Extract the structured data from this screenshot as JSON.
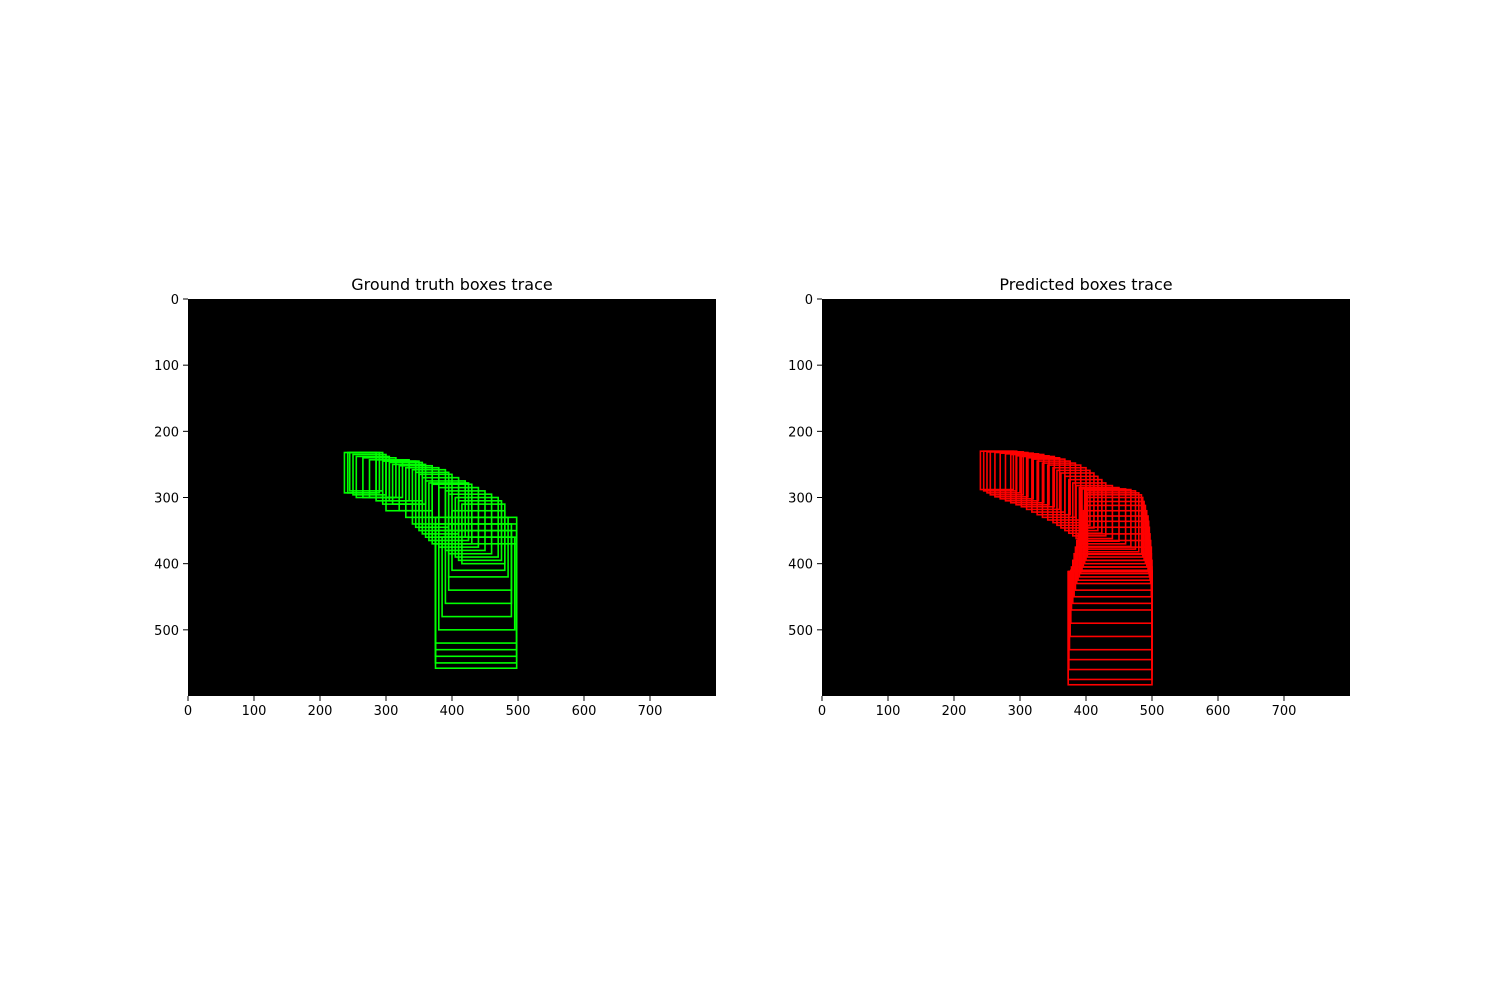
{
  "chart_data": [
    {
      "type": "rectangles",
      "title": "Ground truth boxes trace",
      "background": "#000000",
      "box_color": "#00ff00",
      "xlim": [
        0,
        800
      ],
      "ylim": [
        600,
        0
      ],
      "xticks": [
        0,
        100,
        200,
        300,
        400,
        500,
        600,
        700
      ],
      "yticks": [
        0,
        100,
        200,
        300,
        400,
        500
      ],
      "boxes": [
        [
          237,
          232,
          285,
          293
        ],
        [
          242,
          232,
          290,
          293
        ],
        [
          245,
          232,
          295,
          290
        ],
        [
          250,
          235,
          300,
          296
        ],
        [
          255,
          238,
          305,
          300
        ],
        [
          265,
          240,
          315,
          300
        ],
        [
          275,
          243,
          325,
          300
        ],
        [
          285,
          243,
          335,
          305
        ],
        [
          295,
          245,
          345,
          310
        ],
        [
          300,
          245,
          350,
          320
        ],
        [
          305,
          247,
          355,
          305
        ],
        [
          310,
          250,
          360,
          310
        ],
        [
          320,
          252,
          370,
          320
        ],
        [
          330,
          255,
          380,
          330
        ],
        [
          340,
          258,
          390,
          340
        ],
        [
          345,
          262,
          395,
          345
        ],
        [
          350,
          265,
          400,
          350
        ],
        [
          355,
          270,
          410,
          355
        ],
        [
          360,
          275,
          420,
          360
        ],
        [
          365,
          278,
          425,
          365
        ],
        [
          370,
          280,
          430,
          370
        ],
        [
          380,
          285,
          440,
          375
        ],
        [
          390,
          290,
          450,
          380
        ],
        [
          395,
          295,
          460,
          385
        ],
        [
          405,
          300,
          470,
          390
        ],
        [
          410,
          305,
          475,
          395
        ],
        [
          415,
          310,
          480,
          400
        ],
        [
          400,
          320,
          480,
          410
        ],
        [
          395,
          330,
          485,
          420
        ],
        [
          395,
          340,
          490,
          440
        ],
        [
          390,
          350,
          490,
          460
        ],
        [
          385,
          360,
          490,
          480
        ],
        [
          380,
          360,
          495,
          500
        ],
        [
          375,
          330,
          498,
          520
        ],
        [
          375,
          340,
          498,
          530
        ],
        [
          375,
          350,
          498,
          540
        ],
        [
          375,
          360,
          498,
          550
        ],
        [
          375,
          370,
          498,
          558
        ]
      ]
    },
    {
      "type": "rectangles",
      "title": "Predicted boxes trace",
      "background": "#000000",
      "box_color": "#ff0000",
      "xlim": [
        0,
        800
      ],
      "ylim": [
        600,
        0
      ],
      "xticks": [
        0,
        100,
        200,
        300,
        400,
        500,
        600,
        700
      ],
      "yticks": [
        0,
        100,
        200,
        300,
        400,
        500
      ],
      "boxes": [
        [
          240,
          230,
          290,
          288
        ],
        [
          245,
          230,
          295,
          290
        ],
        [
          250,
          231,
          300,
          293
        ],
        [
          255,
          231,
          305,
          296
        ],
        [
          262,
          232,
          312,
          299
        ],
        [
          270,
          233,
          320,
          302
        ],
        [
          278,
          234,
          328,
          305
        ],
        [
          286,
          235,
          336,
          308
        ],
        [
          294,
          237,
          344,
          311
        ],
        [
          302,
          238,
          352,
          314
        ],
        [
          310,
          240,
          360,
          318
        ],
        [
          318,
          242,
          368,
          322
        ],
        [
          326,
          245,
          376,
          326
        ],
        [
          334,
          248,
          384,
          330
        ],
        [
          342,
          251,
          392,
          334
        ],
        [
          350,
          255,
          400,
          338
        ],
        [
          356,
          259,
          406,
          342
        ],
        [
          362,
          263,
          412,
          346
        ],
        [
          368,
          268,
          418,
          350
        ],
        [
          374,
          273,
          424,
          354
        ],
        [
          380,
          278,
          430,
          358
        ],
        [
          385,
          282,
          440,
          362
        ],
        [
          390,
          285,
          450,
          366
        ],
        [
          394,
          287,
          460,
          370
        ],
        [
          398,
          288,
          468,
          374
        ],
        [
          400,
          290,
          475,
          378
        ],
        [
          402,
          293,
          480,
          382
        ],
        [
          402,
          296,
          484,
          386
        ],
        [
          402,
          300,
          486,
          390
        ],
        [
          400,
          306,
          488,
          395
        ],
        [
          398,
          312,
          490,
          400
        ],
        [
          396,
          320,
          492,
          405
        ],
        [
          394,
          328,
          494,
          410
        ],
        [
          392,
          336,
          495,
          415
        ],
        [
          390,
          345,
          496,
          420
        ],
        [
          388,
          355,
          497,
          425
        ],
        [
          386,
          365,
          498,
          430
        ],
        [
          384,
          375,
          499,
          440
        ],
        [
          382,
          385,
          499,
          450
        ],
        [
          380,
          395,
          500,
          460
        ],
        [
          378,
          405,
          500,
          470
        ],
        [
          377,
          410,
          500,
          490
        ],
        [
          376,
          412,
          500,
          510
        ],
        [
          375,
          412,
          500,
          530
        ],
        [
          374,
          412,
          500,
          545
        ],
        [
          374,
          412,
          500,
          560
        ],
        [
          373,
          412,
          500,
          575
        ],
        [
          373,
          412,
          500,
          583
        ]
      ]
    }
  ]
}
